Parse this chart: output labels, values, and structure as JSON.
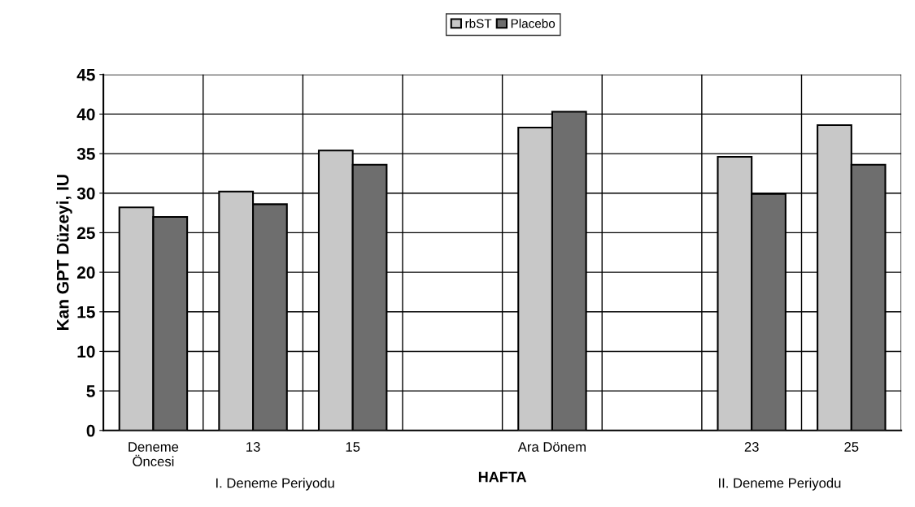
{
  "chart_data": {
    "type": "bar",
    "ylabel": "Kan GPT Düzeyi, IU",
    "xlabel": "HAFTA",
    "categories": [
      "Deneme\nÖncesi",
      "13",
      "15",
      null,
      "Ara Dönem",
      null,
      "23",
      "25"
    ],
    "series": [
      {
        "name": "rbST",
        "color": "#c8c8c8",
        "values": [
          28.2,
          30.2,
          35.4,
          null,
          38.3,
          null,
          34.6,
          38.6
        ]
      },
      {
        "name": "Placebo",
        "color": "#6e6e6e",
        "values": [
          27.0,
          28.6,
          33.6,
          null,
          40.3,
          null,
          29.9,
          33.6
        ]
      }
    ],
    "annotations": [
      "I. Deneme Periyodu",
      "II. Deneme Periyodu"
    ],
    "ylim": [
      0,
      45
    ],
    "yticks": [
      0,
      5,
      10,
      15,
      20,
      25,
      30,
      35,
      40,
      45
    ],
    "grid": true,
    "legend": "top"
  }
}
